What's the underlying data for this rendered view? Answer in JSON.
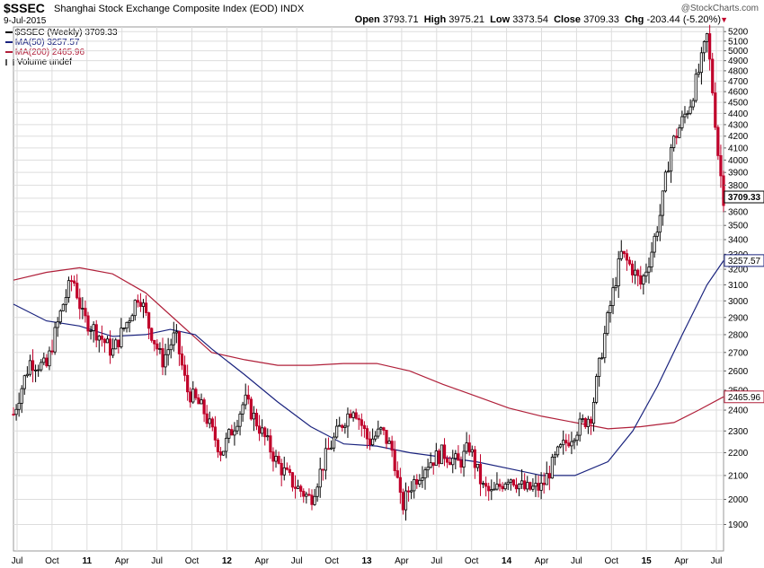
{
  "header": {
    "symbol": "$SSEC",
    "full_name": "Shanghai Stock Exchange Composite Index (EOD)",
    "exchange": "INDX",
    "date": "9-Jul-2015",
    "site": "@StockCharts.com",
    "open_label": "Open",
    "open": "3793.71",
    "high_label": "High",
    "high": "3975.21",
    "low_label": "Low",
    "low": "3373.54",
    "close_label": "Close",
    "close": "3709.33",
    "chg_label": "Chg",
    "chg": "-203.44 (-5.20%)"
  },
  "legend": {
    "price": "$SSEC (Weekly) 3709.33",
    "ma50": "MA(50) 3257.57",
    "ma200": "MA(200) 2465.96",
    "volume": "Volume undef"
  },
  "colors": {
    "up": "#000000",
    "down": "#c0002a",
    "ma50": "#1a237e",
    "ma200": "#b0203a",
    "grid": "#dddddd"
  },
  "chart_data": {
    "type": "line",
    "y_ticks": [
      1900,
      2000,
      2100,
      2200,
      2300,
      2400,
      2500,
      2600,
      2700,
      2800,
      2900,
      3000,
      3100,
      3200,
      3300,
      3400,
      3500,
      3600,
      3700,
      3800,
      3900,
      4000,
      4100,
      4200,
      4300,
      4400,
      4500,
      4600,
      4700,
      4800,
      4900,
      5000,
      5100,
      5200
    ],
    "y_tick_labels": [
      "1900",
      "2000",
      "2100",
      "2200",
      "2300",
      "2400",
      "2500",
      "2600",
      "2700",
      "2800",
      "2900",
      "3000",
      "3100",
      "3200",
      "3300",
      "3400",
      "3500",
      "3600",
      "3700",
      "3800",
      "3900",
      "4000",
      "4100",
      "4200",
      "4300",
      "4400",
      "4500",
      "4600",
      "4700",
      "4800",
      "4900",
      "5000",
      "5100",
      "5200"
    ],
    "ylim": [
      1800,
      5250
    ],
    "y_scale": "log",
    "x_ticks": [
      {
        "label": "Jul",
        "bold": false
      },
      {
        "label": "Oct",
        "bold": false
      },
      {
        "label": "11",
        "bold": true
      },
      {
        "label": "Apr",
        "bold": false
      },
      {
        "label": "Jul",
        "bold": false
      },
      {
        "label": "Oct",
        "bold": false
      },
      {
        "label": "12",
        "bold": true
      },
      {
        "label": "Apr",
        "bold": false
      },
      {
        "label": "Jul",
        "bold": false
      },
      {
        "label": "Oct",
        "bold": false
      },
      {
        "label": "13",
        "bold": true
      },
      {
        "label": "Apr",
        "bold": false
      },
      {
        "label": "Jul",
        "bold": false
      },
      {
        "label": "Oct",
        "bold": false
      },
      {
        "label": "14",
        "bold": true
      },
      {
        "label": "Apr",
        "bold": false
      },
      {
        "label": "Jul",
        "bold": false
      },
      {
        "label": "Oct",
        "bold": false
      },
      {
        "label": "15",
        "bold": true
      },
      {
        "label": "Apr",
        "bold": false
      },
      {
        "label": "Jul",
        "bold": false
      }
    ],
    "last_price_label": "3709.33",
    "last_price": 3709.33,
    "ma50_label": "3257.57",
    "ma50_last": 3257.57,
    "ma200_label": "2465.96",
    "ma200_last": 2465.96,
    "price_series": [
      {
        "t": 0.0,
        "v": 2380
      },
      {
        "t": 1.0,
        "v": 2650
      },
      {
        "t": 2.0,
        "v": 2620
      },
      {
        "t": 3.0,
        "v": 2980
      },
      {
        "t": 3.6,
        "v": 3150
      },
      {
        "t": 4.2,
        "v": 2900
      },
      {
        "t": 5.0,
        "v": 2820
      },
      {
        "t": 6.0,
        "v": 2700
      },
      {
        "t": 7.0,
        "v": 2900
      },
      {
        "t": 7.6,
        "v": 3050
      },
      {
        "t": 8.2,
        "v": 2850
      },
      {
        "t": 9.0,
        "v": 2650
      },
      {
        "t": 9.8,
        "v": 2800
      },
      {
        "t": 10.5,
        "v": 2500
      },
      {
        "t": 11.5,
        "v": 2400
      },
      {
        "t": 12.0,
        "v": 2300
      },
      {
        "t": 12.6,
        "v": 2200
      },
      {
        "t": 13.5,
        "v": 2350
      },
      {
        "t": 14.0,
        "v": 2450
      },
      {
        "t": 15.0,
        "v": 2300
      },
      {
        "t": 16.0,
        "v": 2150
      },
      {
        "t": 17.0,
        "v": 2060
      },
      {
        "t": 18.0,
        "v": 2000
      },
      {
        "t": 19.0,
        "v": 2200
      },
      {
        "t": 20.0,
        "v": 2350
      },
      {
        "t": 20.6,
        "v": 2420
      },
      {
        "t": 21.5,
        "v": 2250
      },
      {
        "t": 22.3,
        "v": 2300
      },
      {
        "t": 23.0,
        "v": 2200
      },
      {
        "t": 23.5,
        "v": 1960
      },
      {
        "t": 24.0,
        "v": 2050
      },
      {
        "t": 25.0,
        "v": 2150
      },
      {
        "t": 26.0,
        "v": 2200
      },
      {
        "t": 27.0,
        "v": 2150
      },
      {
        "t": 27.6,
        "v": 2230
      },
      {
        "t": 28.4,
        "v": 2050
      },
      {
        "t": 29.0,
        "v": 2020
      },
      {
        "t": 30.0,
        "v": 2100
      },
      {
        "t": 31.0,
        "v": 2040
      },
      {
        "t": 32.0,
        "v": 2050
      },
      {
        "t": 33.0,
        "v": 2200
      },
      {
        "t": 34.0,
        "v": 2300
      },
      {
        "t": 35.0,
        "v": 2380
      },
      {
        "t": 36.0,
        "v": 2900
      },
      {
        "t": 36.8,
        "v": 3300
      },
      {
        "t": 37.5,
        "v": 3200
      },
      {
        "t": 38.0,
        "v": 3100
      },
      {
        "t": 38.6,
        "v": 3300
      },
      {
        "t": 39.2,
        "v": 3600
      },
      {
        "t": 39.8,
        "v": 4100
      },
      {
        "t": 40.4,
        "v": 4300
      },
      {
        "t": 41.0,
        "v": 4500
      },
      {
        "t": 41.6,
        "v": 4850
      },
      {
        "t": 42.0,
        "v": 5150
      },
      {
        "t": 42.4,
        "v": 4500
      },
      {
        "t": 42.7,
        "v": 4000
      },
      {
        "t": 43.0,
        "v": 3709
      }
    ],
    "ma50_series": [
      {
        "t": 0.0,
        "v": 2980
      },
      {
        "t": 2.0,
        "v": 2880
      },
      {
        "t": 4.0,
        "v": 2850
      },
      {
        "t": 6.0,
        "v": 2790
      },
      {
        "t": 8.0,
        "v": 2800
      },
      {
        "t": 9.5,
        "v": 2830
      },
      {
        "t": 11.0,
        "v": 2800
      },
      {
        "t": 12.0,
        "v": 2720
      },
      {
        "t": 14.0,
        "v": 2580
      },
      {
        "t": 16.0,
        "v": 2440
      },
      {
        "t": 18.0,
        "v": 2320
      },
      {
        "t": 20.0,
        "v": 2240
      },
      {
        "t": 22.0,
        "v": 2230
      },
      {
        "t": 24.0,
        "v": 2200
      },
      {
        "t": 26.0,
        "v": 2180
      },
      {
        "t": 28.0,
        "v": 2160
      },
      {
        "t": 30.0,
        "v": 2130
      },
      {
        "t": 32.0,
        "v": 2100
      },
      {
        "t": 34.0,
        "v": 2100
      },
      {
        "t": 36.0,
        "v": 2160
      },
      {
        "t": 37.5,
        "v": 2300
      },
      {
        "t": 39.0,
        "v": 2520
      },
      {
        "t": 40.5,
        "v": 2800
      },
      {
        "t": 42.0,
        "v": 3100
      },
      {
        "t": 43.0,
        "v": 3257
      }
    ],
    "ma200_series": [
      {
        "t": 0.0,
        "v": 3130
      },
      {
        "t": 2.0,
        "v": 3180
      },
      {
        "t": 4.0,
        "v": 3210
      },
      {
        "t": 6.0,
        "v": 3170
      },
      {
        "t": 8.0,
        "v": 3050
      },
      {
        "t": 10.0,
        "v": 2870
      },
      {
        "t": 12.0,
        "v": 2700
      },
      {
        "t": 14.0,
        "v": 2660
      },
      {
        "t": 16.0,
        "v": 2630
      },
      {
        "t": 18.0,
        "v": 2630
      },
      {
        "t": 20.0,
        "v": 2640
      },
      {
        "t": 22.0,
        "v": 2640
      },
      {
        "t": 24.0,
        "v": 2600
      },
      {
        "t": 26.0,
        "v": 2530
      },
      {
        "t": 28.0,
        "v": 2470
      },
      {
        "t": 30.0,
        "v": 2410
      },
      {
        "t": 32.0,
        "v": 2370
      },
      {
        "t": 34.0,
        "v": 2340
      },
      {
        "t": 36.0,
        "v": 2310
      },
      {
        "t": 38.0,
        "v": 2320
      },
      {
        "t": 40.0,
        "v": 2340
      },
      {
        "t": 41.5,
        "v": 2400
      },
      {
        "t": 43.0,
        "v": 2466
      }
    ]
  }
}
